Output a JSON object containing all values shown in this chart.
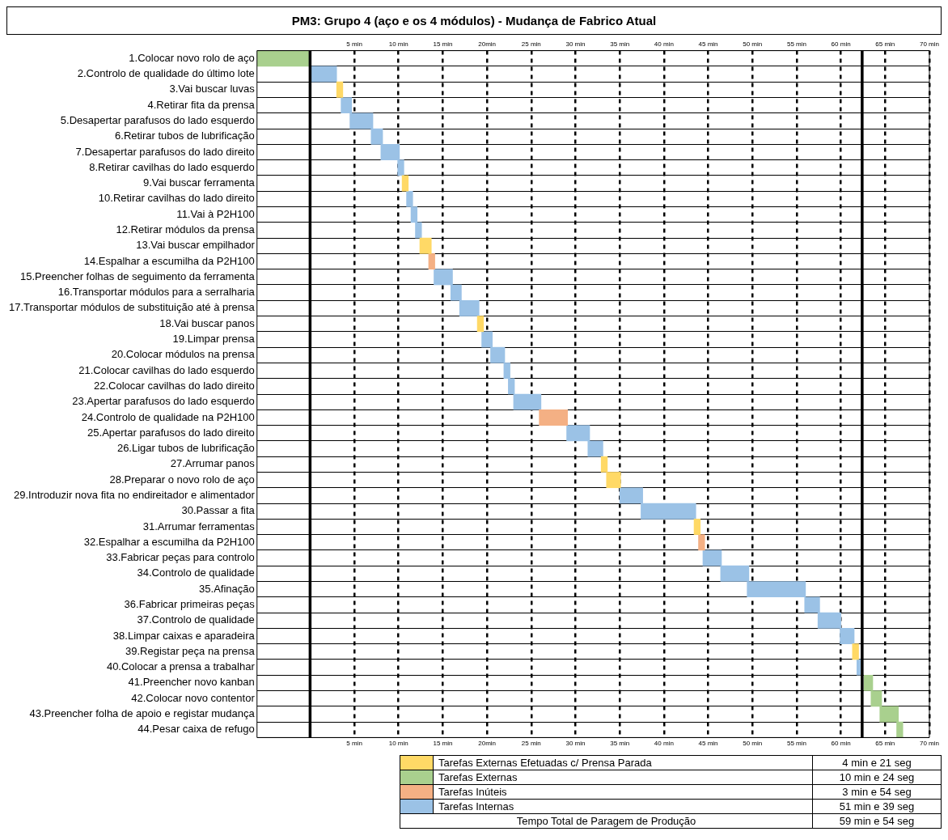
{
  "chart_data": {
    "type": "bar",
    "orientation": "horizontal",
    "title": "PM3: Grupo 4 (aço e os 4 módulos) - Mudança de Fabrico Atual",
    "categories": [
      "1.Colocar novo rolo de aço",
      "2.Controlo de qualidade do último lote",
      "3.Vai buscar luvas",
      "4.Retirar fita da prensa",
      "5.Desapertar parafusos do lado esquerdo",
      "6.Retirar tubos de lubrificação",
      "7.Desapertar parafusos do lado direito",
      "8.Retirar cavilhas do lado esquerdo",
      "9.Vai buscar ferramenta",
      "10.Retirar cavilhas do lado direito",
      "11.Vai à P2H100",
      "12.Retirar módulos da prensa",
      "13.Vai buscar empilhador",
      "14.Espalhar a escumilha da P2H100",
      "15.Preencher folhas de seguimento da ferramenta",
      "16.Transportar módulos para a serralharia",
      "17.Transportar módulos de substituição até à prensa",
      "18.Vai buscar panos",
      "19.Limpar prensa",
      "20.Colocar módulos na prensa",
      "21.Colocar cavilhas do lado esquerdo",
      "22.Colocar cavilhas do lado direito",
      "23.Apertar parafusos do lado esquerdo",
      "24.Controlo de qualidade na P2H100",
      "25.Apertar parafusos do lado direito",
      "26.Ligar tubos de lubrificação",
      "27.Arrumar panos",
      "28.Preparar o novo rolo de aço",
      "29.Introduzir nova fita no endireitador e alimentador",
      "30.Passar a fita",
      "31.Arrumar ferramentas",
      "32.Espalhar a escumilha da P2H100",
      "33.Fabricar peças para controlo",
      "34.Controlo de qualidade",
      "35.Afinação",
      "36.Fabricar primeiras peças",
      "37.Controlo de qualidade",
      "38.Limpar caixas e aparadeira",
      "39.Registar peça na prensa",
      "40.Colocar a prensa a trabalhar",
      "41.Preencher novo kanban",
      "42.Colocar novo contentor",
      "43.Preencher folha de apoio e registar mudança",
      "44.Pesar caixa de refugo"
    ],
    "series": [
      {
        "name": "Tarefas Externas Efetuadas c/ Prensa Parada",
        "color": "#ffd966",
        "values": [
          null,
          null,
          0.7,
          null,
          null,
          null,
          null,
          null,
          0.7,
          null,
          null,
          null,
          1.3,
          null,
          null,
          null,
          null,
          0.7,
          null,
          null,
          null,
          null,
          null,
          null,
          null,
          null,
          0.7,
          1.6,
          null,
          null,
          0.7,
          null,
          null,
          null,
          null,
          null,
          null,
          null,
          0.7,
          null,
          null,
          null,
          null,
          null
        ],
        "base": [
          null,
          null,
          3,
          null,
          null,
          null,
          null,
          null,
          10.4,
          null,
          null,
          null,
          12.4,
          null,
          null,
          null,
          null,
          18.9,
          null,
          null,
          null,
          null,
          null,
          null,
          null,
          null,
          32.9,
          33.5,
          null,
          null,
          43.4,
          null,
          null,
          null,
          null,
          null,
          null,
          null,
          61.3,
          null,
          null,
          null,
          null,
          null
        ]
      },
      {
        "name": "Tarefas Externas",
        "color": "#a9d08e",
        "values": [
          6,
          null,
          null,
          null,
          null,
          null,
          null,
          null,
          null,
          null,
          null,
          null,
          null,
          null,
          null,
          null,
          null,
          null,
          null,
          null,
          null,
          null,
          null,
          null,
          null,
          null,
          null,
          null,
          null,
          null,
          null,
          null,
          null,
          null,
          null,
          null,
          null,
          null,
          null,
          null,
          1,
          1.2,
          2.1,
          0.7
        ],
        "base": [
          -6,
          null,
          null,
          null,
          null,
          null,
          null,
          null,
          null,
          null,
          null,
          null,
          null,
          null,
          null,
          null,
          null,
          null,
          null,
          null,
          null,
          null,
          null,
          null,
          null,
          null,
          null,
          null,
          null,
          null,
          null,
          null,
          null,
          null,
          null,
          null,
          null,
          null,
          null,
          null,
          62.6,
          63.4,
          64.4,
          66.3
        ]
      },
      {
        "name": "Tarefas Inúteis",
        "color": "#f4b084",
        "values": [
          null,
          null,
          null,
          null,
          null,
          null,
          null,
          null,
          null,
          null,
          null,
          null,
          null,
          0.7,
          null,
          null,
          null,
          null,
          null,
          null,
          null,
          null,
          null,
          3.2,
          null,
          null,
          null,
          null,
          null,
          null,
          null,
          0.7,
          null,
          null,
          null,
          null,
          null,
          null,
          null,
          null,
          null,
          null,
          null,
          null
        ],
        "base": [
          null,
          null,
          null,
          null,
          null,
          null,
          null,
          null,
          null,
          null,
          null,
          null,
          null,
          13.4,
          null,
          null,
          null,
          null,
          null,
          null,
          null,
          null,
          null,
          25.9,
          null,
          null,
          null,
          null,
          null,
          null,
          null,
          43.9,
          null,
          null,
          null,
          null,
          null,
          null,
          null,
          null,
          null,
          null,
          null,
          null
        ]
      },
      {
        "name": "Tarefas Internas",
        "color": "#9bc2e6",
        "values": [
          null,
          3,
          null,
          1.2,
          2.6,
          1.3,
          2.1,
          0.7,
          null,
          0.7,
          0.7,
          0.7,
          null,
          null,
          2.1,
          1.2,
          2.2,
          null,
          1.2,
          1.6,
          0.7,
          0.7,
          3.1,
          null,
          2.6,
          1.7,
          null,
          null,
          2.6,
          6.2,
          null,
          null,
          2.1,
          3.2,
          6.6,
          1.7,
          2.6,
          1.6,
          null,
          0.4,
          null,
          null,
          null,
          null
        ],
        "base": [
          null,
          0,
          null,
          3.5,
          4.5,
          6.9,
          8,
          9.9,
          null,
          10.9,
          11.4,
          11.9,
          null,
          null,
          14,
          15.9,
          16.9,
          null,
          19.4,
          20.4,
          21.9,
          22.4,
          23,
          null,
          29,
          31.4,
          null,
          null,
          35,
          37.4,
          null,
          null,
          44.4,
          46.4,
          49.4,
          55.9,
          57.4,
          59.9,
          null,
          61.8,
          null,
          null,
          null,
          null
        ]
      }
    ],
    "xlim": [
      -6,
      70
    ],
    "xticks": [
      {
        "value": 5,
        "label": "5 min"
      },
      {
        "value": 10,
        "label": "10 min"
      },
      {
        "value": 15,
        "label": "15 min"
      },
      {
        "value": 20,
        "label": "20min"
      },
      {
        "value": 25,
        "label": "25 min"
      },
      {
        "value": 30,
        "label": "30 min"
      },
      {
        "value": 35,
        "label": "35 min"
      },
      {
        "value": 40,
        "label": "40 min"
      },
      {
        "value": 45,
        "label": "45 min"
      },
      {
        "value": 50,
        "label": "50 min"
      },
      {
        "value": 55,
        "label": "55 min"
      },
      {
        "value": 60,
        "label": "60 min"
      },
      {
        "value": 65,
        "label": "65 min"
      },
      {
        "value": 70,
        "label": "70 min"
      }
    ],
    "x2lim": [
      -6,
      70
    ],
    "x2ticks": [
      {
        "value": 5,
        "label": "5 min"
      },
      {
        "value": 10,
        "label": "10 min"
      },
      {
        "value": 15,
        "label": "15 min"
      },
      {
        "value": 20,
        "label": "20min"
      },
      {
        "value": 25,
        "label": "25 min"
      },
      {
        "value": 30,
        "label": "30 min"
      },
      {
        "value": 35,
        "label": "35 min"
      },
      {
        "value": 40,
        "label": "40 min"
      },
      {
        "value": 45,
        "label": "45 min"
      },
      {
        "value": 50,
        "label": "50 min"
      },
      {
        "value": 55,
        "label": "55 min"
      },
      {
        "value": 60,
        "label": "60 min"
      },
      {
        "value": 65,
        "label": "65 min"
      },
      {
        "value": 70,
        "label": "70 min"
      }
    ],
    "grid": true,
    "legend": "bottom",
    "ref_lines": [
      {
        "axis": "x",
        "value": 0,
        "color": "#000000"
      },
      {
        "axis": "x",
        "value": 62.4,
        "color": "#000000"
      }
    ],
    "annotations": [
      "4 min e 21 seg",
      "10 min e 24 seg",
      "3 min e 54 seg",
      "51 min e 39 seg",
      "Tempo Total de Paragem de Produção",
      "59 min e 54 seg"
    ]
  }
}
